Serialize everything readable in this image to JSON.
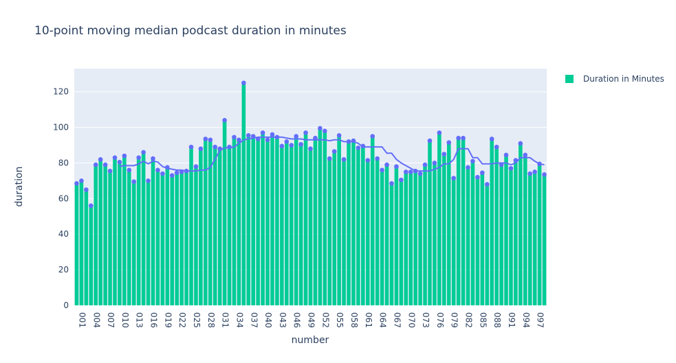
{
  "chart_data": {
    "type": "bar",
    "title": "10-point moving median podcast duration in minutes",
    "x_label": "number",
    "y_label": "duration",
    "categories": [
      "001",
      null,
      null,
      "004",
      null,
      null,
      "007",
      null,
      null,
      "010",
      null,
      null,
      "013",
      null,
      null,
      "016",
      null,
      null,
      "019",
      null,
      null,
      "022",
      null,
      null,
      "025",
      null,
      null,
      "028",
      null,
      null,
      "031",
      null,
      null,
      "034",
      null,
      null,
      "037",
      null,
      null,
      "040",
      null,
      null,
      "043",
      null,
      null,
      "046",
      null,
      null,
      "049",
      null,
      null,
      "052",
      null,
      null,
      "055",
      null,
      null,
      "058",
      null,
      null,
      "061",
      null,
      null,
      "064",
      null,
      null,
      "067",
      null,
      null,
      "070",
      null,
      null,
      "073",
      null,
      null,
      "076",
      null,
      null,
      "079",
      null,
      null,
      "082",
      null,
      null,
      "085",
      null,
      null,
      "088",
      null,
      null,
      "091",
      null,
      null,
      "094",
      null,
      null,
      "097",
      null,
      null
    ],
    "series": [
      {
        "name": "Duration in Minutes",
        "color": "#00cc96",
        "marker_color": "#636efa",
        "values": [
          68.5,
          70,
          65,
          56,
          79,
          82,
          79,
          75.5,
          83,
          80.5,
          84,
          76,
          69.5,
          83,
          86,
          70,
          82.5,
          76,
          74,
          77.5,
          73,
          74.5,
          75,
          75.5,
          89,
          78,
          88,
          93.5,
          93,
          89,
          88,
          104,
          89,
          94.5,
          93,
          125,
          95.5,
          95,
          93.5,
          97,
          93,
          96,
          94.5,
          89.5,
          92,
          90,
          95,
          90.5,
          97,
          88,
          94,
          99.5,
          98,
          82.5,
          86.5,
          95.5,
          82,
          92,
          92.5,
          88.5,
          89.5,
          81.5,
          95,
          82.5,
          76,
          79,
          68.5,
          78,
          70.5,
          75,
          75,
          75.5,
          74,
          79,
          92.5,
          80,
          97,
          85,
          91.5,
          71.5,
          94,
          94,
          77.5,
          81,
          72,
          74.5,
          68,
          93.5,
          89,
          79,
          84.5,
          77,
          81.5,
          91,
          84.5,
          74,
          75,
          79.5,
          73.5
        ]
      },
      {
        "mode": "lines",
        "color": "#636efa",
        "values": [
          null,
          null,
          null,
          null,
          null,
          null,
          null,
          null,
          null,
          78,
          78.5,
          78.5,
          78.5,
          79.5,
          81,
          79.5,
          81,
          80.5,
          78,
          77,
          76.5,
          76,
          76,
          75.5,
          75.5,
          75.5,
          76,
          76,
          77.5,
          82,
          87,
          88.5,
          88.5,
          89,
          91,
          93,
          93.5,
          94,
          94.5,
          94.5,
          94.5,
          94.5,
          94.5,
          94.5,
          94,
          93.5,
          93.5,
          93.5,
          93,
          93,
          93,
          93,
          93,
          92.5,
          93,
          93,
          92,
          92,
          92,
          91,
          89,
          89,
          89,
          89,
          89,
          85.5,
          85.5,
          82,
          80,
          78.5,
          77,
          75.5,
          75.5,
          75.5,
          75.5,
          76.5,
          77.5,
          79.5,
          79.5,
          82,
          88,
          88,
          88,
          83,
          83,
          79.5,
          79.5,
          79.5,
          80,
          80,
          80,
          79,
          80,
          83,
          83,
          83,
          81,
          79.5,
          79
        ]
      }
    ],
    "ylim": [
      0,
      133
    ],
    "yticks": [
      0,
      20,
      40,
      60,
      80,
      100,
      120
    ],
    "grid": true,
    "plot_bgcolor": "#e5ecf6",
    "legend": "top-right"
  }
}
